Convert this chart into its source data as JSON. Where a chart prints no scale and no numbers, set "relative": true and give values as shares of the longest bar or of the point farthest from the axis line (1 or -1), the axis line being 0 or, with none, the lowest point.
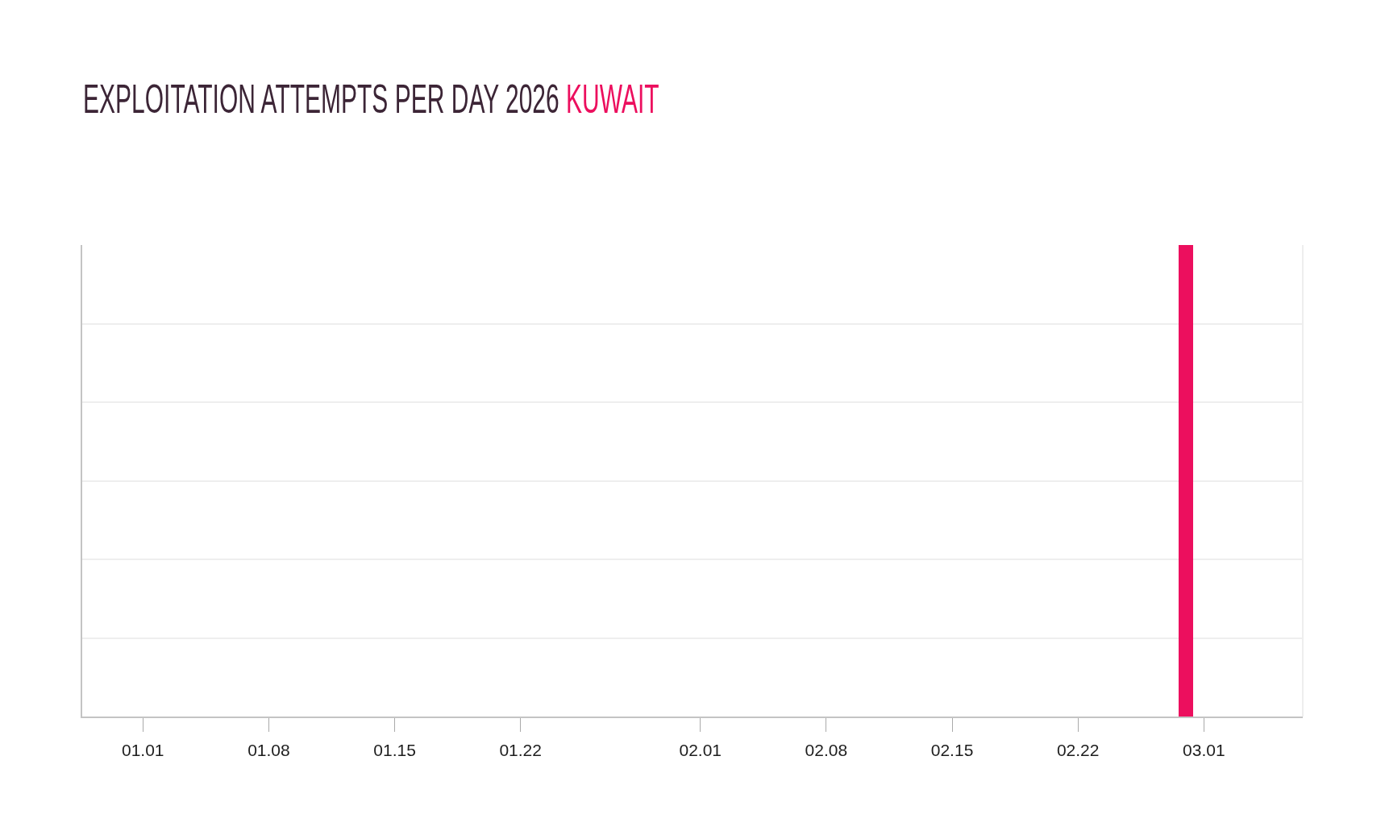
{
  "chart_data": {
    "type": "bar",
    "title": "EXPLOITATION ATTEMPTS PER DAY 2026",
    "subtitle": "KUWAIT",
    "x": [
      "2026-02-28"
    ],
    "values": [
      1
    ],
    "color": "#ec0f5e",
    "relative": true,
    "xlim": [
      "2025-12-28T15:00",
      "2026-03-06T12:00"
    ],
    "xticks": [
      {
        "value": "2026-01-01",
        "label": "01.01"
      },
      {
        "value": "2026-01-08",
        "label": "01.08"
      },
      {
        "value": "2026-01-15",
        "label": "01.15"
      },
      {
        "value": "2026-01-22",
        "label": "01.22"
      },
      {
        "value": "2026-02-01",
        "label": "02.01"
      },
      {
        "value": "2026-02-08",
        "label": "02.08"
      },
      {
        "value": "2026-02-15",
        "label": "02.15"
      },
      {
        "value": "2026-02-22",
        "label": "02.22"
      },
      {
        "value": "2026-03-01",
        "label": "03.01"
      }
    ],
    "grid": "y"
  }
}
